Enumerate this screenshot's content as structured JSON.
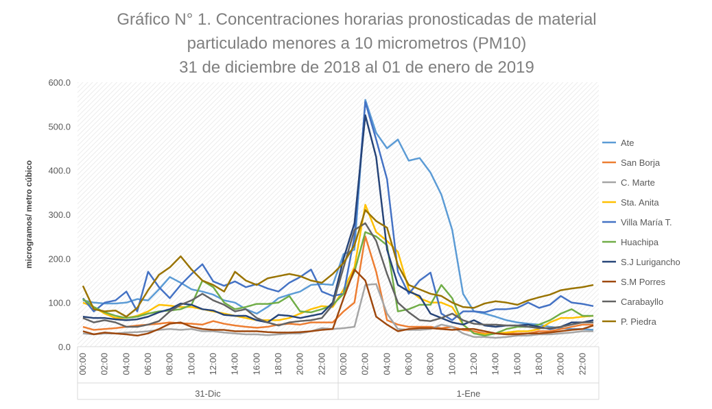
{
  "chart_data": {
    "type": "line",
    "title": [
      "Gráfico N° 1. Concentraciones horarias pronosticadas de material",
      "particulado menores a 10 micrometros (PM10)",
      "31 de diciembre de 2018 al 01 de enero de 2019"
    ],
    "y_label": "microgramos/ metro cúbico",
    "groups": [
      "31-Dic",
      "1-Ene"
    ],
    "categories": [
      "00:00",
      null,
      "02:00",
      null,
      "04:00",
      null,
      "06:00",
      null,
      "08:00",
      null,
      "10:00",
      null,
      "12:00",
      null,
      "14:00",
      null,
      "16:00",
      null,
      "18:00",
      null,
      "20:00",
      null,
      "22:00",
      null,
      "00:00",
      null,
      "02:00",
      null,
      "04:00",
      null,
      "06:00",
      null,
      "08:00",
      null,
      "10:00",
      null,
      "12:00",
      null,
      "14:00",
      null,
      "16:00",
      null,
      "18:00",
      null,
      "20:00",
      null,
      "22:00",
      null
    ],
    "ylim": [
      0,
      600
    ],
    "yticks": [
      {
        "value": 0,
        "label": "0.0"
      },
      {
        "value": 100,
        "label": "100.0"
      },
      {
        "value": 200,
        "label": "200.0"
      },
      {
        "value": 300,
        "label": "300.0"
      },
      {
        "value": 400,
        "label": "400.0"
      },
      {
        "value": 500,
        "label": "500.0"
      },
      {
        "value": 600,
        "label": "600.0"
      }
    ],
    "legend": "right",
    "series": [
      {
        "name": "Ate",
        "color": "#5b9bd5",
        "values": [
          105,
          100,
          98,
          98,
          100,
          108,
          105,
          130,
          158,
          145,
          130,
          125,
          118,
          105,
          100,
          85,
          75,
          90,
          110,
          118,
          125,
          140,
          142,
          140,
          210,
          220,
          560,
          485,
          450,
          470,
          422,
          428,
          395,
          345,
          265,
          120,
          80,
          75,
          68,
          60,
          55,
          52,
          50,
          45,
          42,
          40,
          40,
          38
        ]
      },
      {
        "name": "San Borja",
        "color": "#ed7d31",
        "values": [
          45,
          38,
          40,
          42,
          45,
          48,
          50,
          52,
          55,
          53,
          52,
          50,
          58,
          52,
          48,
          45,
          43,
          45,
          50,
          52,
          50,
          55,
          55,
          55,
          80,
          100,
          250,
          170,
          60,
          50,
          45,
          45,
          45,
          42,
          45,
          38,
          35,
          30,
          30,
          30,
          30,
          30,
          35,
          35,
          40,
          45,
          50,
          50
        ]
      },
      {
        "name": "C. Marte",
        "color": "#a5a5a5",
        "values": [
          30,
          28,
          30,
          30,
          32,
          33,
          35,
          38,
          40,
          38,
          40,
          35,
          35,
          32,
          30,
          28,
          28,
          26,
          28,
          30,
          30,
          35,
          42,
          40,
          42,
          45,
          140,
          142,
          75,
          40,
          38,
          38,
          40,
          50,
          45,
          30,
          22,
          22,
          20,
          22,
          25,
          25,
          28,
          28,
          30,
          32,
          35,
          35
        ]
      },
      {
        "name": "Sta. Anita",
        "color": "#ffc000",
        "values": [
          100,
          90,
          75,
          65,
          65,
          70,
          80,
          95,
          93,
          90,
          90,
          85,
          80,
          75,
          70,
          65,
          60,
          60,
          60,
          65,
          75,
          85,
          92,
          90,
          130,
          180,
          322,
          260,
          240,
          215,
          130,
          110,
          100,
          100,
          90,
          50,
          30,
          28,
          30,
          32,
          35,
          35,
          40,
          55,
          65,
          65,
          68,
          70
        ]
      },
      {
        "name": "Villa María T.",
        "color": "#4472c4",
        "values": [
          110,
          80,
          100,
          105,
          125,
          80,
          170,
          135,
          110,
          140,
          165,
          187,
          148,
          138,
          148,
          135,
          142,
          132,
          125,
          145,
          158,
          175,
          125,
          115,
          120,
          250,
          555,
          470,
          380,
          170,
          120,
          150,
          168,
          75,
          60,
          80,
          80,
          78,
          85,
          85,
          88,
          100,
          88,
          95,
          115,
          100,
          97,
          92
        ]
      },
      {
        "name": "Huachipa",
        "color": "#70ad47",
        "values": [
          108,
          90,
          78,
          70,
          65,
          68,
          75,
          80,
          82,
          85,
          95,
          150,
          135,
          100,
          85,
          90,
          97,
          97,
          100,
          115,
          80,
          78,
          85,
          95,
          120,
          170,
          260,
          250,
          230,
          80,
          85,
          95,
          95,
          140,
          110,
          50,
          30,
          25,
          30,
          40,
          45,
          45,
          50,
          60,
          75,
          85,
          70,
          70
        ]
      },
      {
        "name": "S.J Lurigancho",
        "color": "#264478",
        "values": [
          68,
          65,
          65,
          62,
          60,
          62,
          68,
          78,
          85,
          98,
          95,
          85,
          82,
          72,
          70,
          70,
          60,
          55,
          72,
          70,
          65,
          70,
          75,
          100,
          200,
          280,
          525,
          430,
          220,
          140,
          125,
          115,
          75,
          65,
          55,
          50,
          60,
          48,
          45,
          48,
          48,
          50,
          45,
          40,
          45,
          55,
          55,
          60
        ]
      },
      {
        "name": "S.M Porres",
        "color": "#9e480e",
        "values": [
          35,
          28,
          32,
          30,
          28,
          25,
          30,
          40,
          52,
          55,
          45,
          40,
          38,
          38,
          35,
          35,
          35,
          33,
          32,
          32,
          33,
          35,
          38,
          40,
          110,
          175,
          150,
          68,
          50,
          35,
          40,
          42,
          42,
          40,
          38,
          40,
          40,
          35,
          30,
          28,
          28,
          30,
          30,
          32,
          35,
          38,
          40,
          48
        ]
      },
      {
        "name": "Carabayllo",
        "color": "#636363",
        "values": [
          65,
          55,
          60,
          55,
          45,
          45,
          50,
          58,
          80,
          95,
          105,
          120,
          105,
          95,
          80,
          85,
          65,
          55,
          48,
          55,
          58,
          60,
          65,
          95,
          180,
          265,
          280,
          240,
          165,
          100,
          78,
          60,
          58,
          65,
          75,
          60,
          52,
          50,
          50,
          48,
          48,
          45,
          42,
          42,
          45,
          50,
          55,
          55
        ]
      },
      {
        "name": "P. Piedra",
        "color": "#997300",
        "values": [
          138,
          85,
          80,
          82,
          68,
          88,
          128,
          163,
          180,
          205,
          175,
          150,
          140,
          125,
          170,
          150,
          140,
          155,
          160,
          165,
          160,
          150,
          145,
          165,
          190,
          230,
          310,
          285,
          270,
          185,
          140,
          130,
          120,
          115,
          100,
          90,
          88,
          98,
          103,
          100,
          95,
          105,
          112,
          118,
          128,
          132,
          135,
          140
        ]
      }
    ]
  }
}
